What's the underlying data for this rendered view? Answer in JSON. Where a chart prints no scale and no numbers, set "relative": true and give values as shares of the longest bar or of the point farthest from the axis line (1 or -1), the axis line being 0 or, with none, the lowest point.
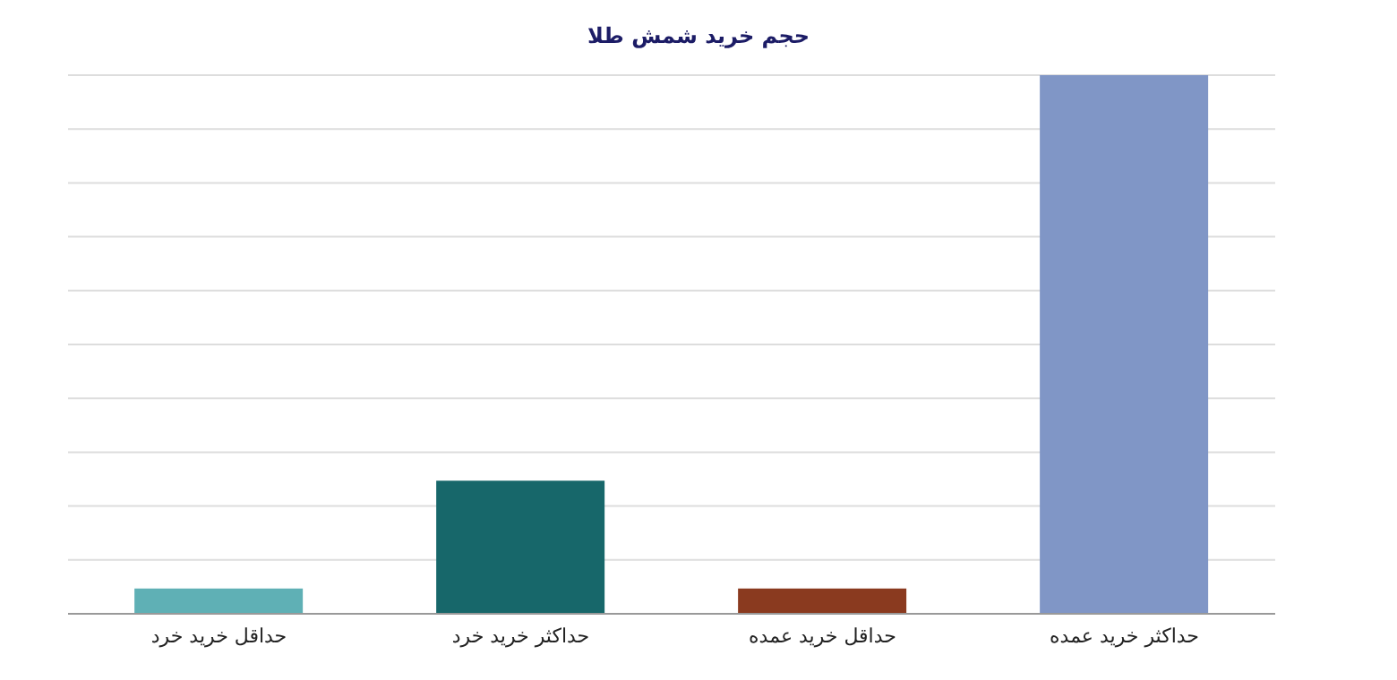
{
  "chart_data": {
    "type": "bar",
    "title": "حجم خرید شمش طلا",
    "relative": true,
    "grid": "y",
    "categories": [
      "حداقل خرید خرد",
      "حداکثر خرید خرد",
      "حداقل خرید عمده",
      "حداکثر خرید عمده"
    ],
    "values": [
      0.047,
      0.247,
      0.047,
      1
    ],
    "colors": [
      "#5fb0b5",
      "#17676a",
      "#8a3a1f",
      "#8096c6"
    ]
  }
}
